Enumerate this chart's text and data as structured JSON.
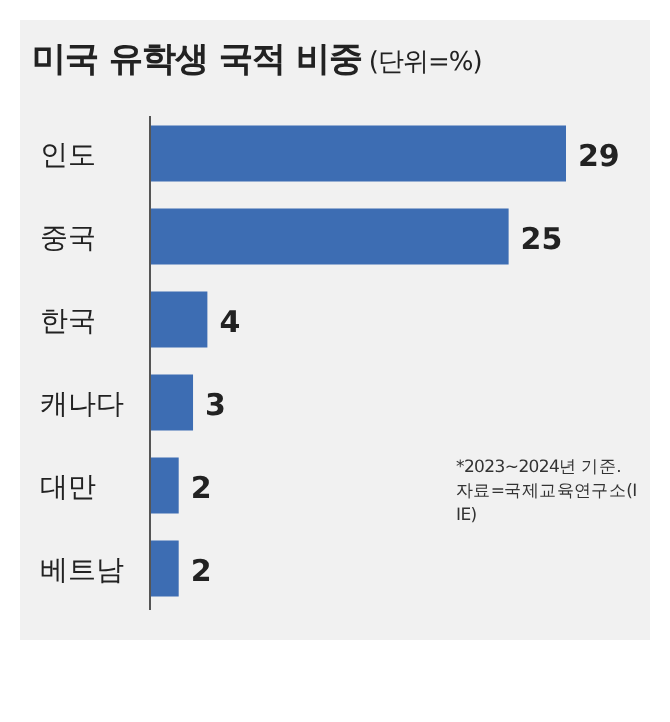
{
  "chart_data": {
    "type": "bar",
    "orientation": "horizontal",
    "title": "**미국 유학생 국적 비중** (단위=%)",
    "categories": [
      "인도",
      "중국",
      "한국",
      "캐나다",
      "대만",
      "베트남"
    ],
    "values": [
      29,
      25,
      4,
      3,
      2,
      2
    ],
    "color": "#3d6db3",
    "data_labels": true,
    "annotations": [
      "*2023~2024년 기준. 자료=국제교육연구소(IIE)"
    ]
  }
}
